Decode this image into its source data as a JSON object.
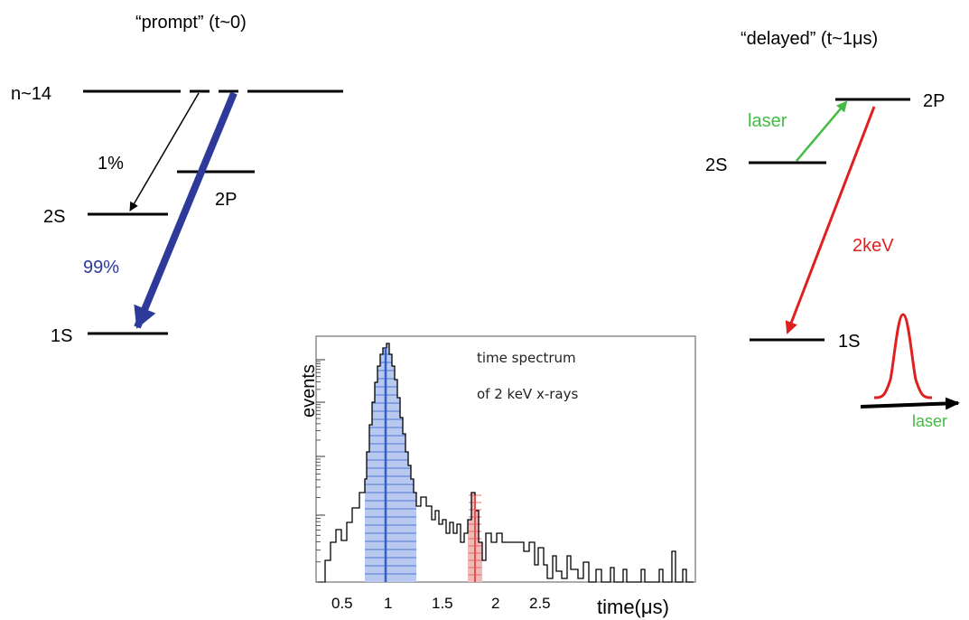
{
  "left": {
    "title": "“prompt” (t~0)",
    "level_n": "n~14",
    "level_2s": "2S",
    "level_2p": "2P",
    "level_1s": "1S",
    "branch_small": "1%",
    "branch_large": "99%"
  },
  "right": {
    "title": "“delayed”  (t~1μs)",
    "level_2p": "2P",
    "level_2s": "2S",
    "level_1s": "1S",
    "laser_label": "laser",
    "energy_label": "2keV",
    "laser_axis_label": "laser"
  },
  "spectrum": {
    "ylabel": "events",
    "xlabel": "time(μs)",
    "annotation_line1": "time spectrum",
    "annotation_line2": "of 2 keV x-rays",
    "ticks": [
      "0.5",
      "1",
      "1.5",
      "2",
      "2.5"
    ]
  },
  "colors": {
    "prompt_arrow": "#2d3a9a",
    "laser": "#44bb44",
    "xray": "#e02020",
    "hist_fill": "#b8c8ee",
    "hist_line": "#2f5fc8",
    "hist_red_fill": "#f3b8b8",
    "hist_red_line": "#e05050"
  }
}
